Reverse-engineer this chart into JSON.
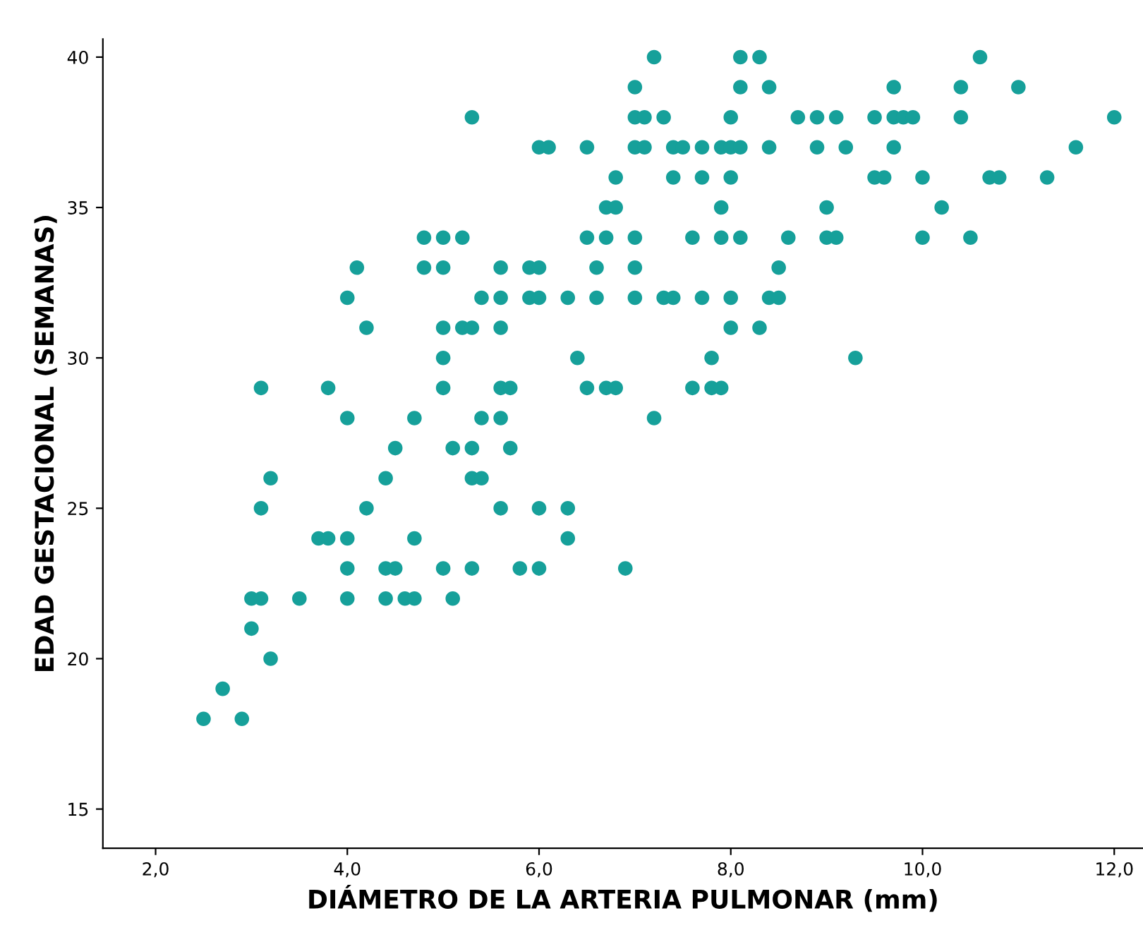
{
  "chart_data": {
    "type": "scatter",
    "xlabel": "DIÁMETRO DE LA ARTERIA PULMONAR (mm)",
    "ylabel": "EDAD GESTACIONAL (SEMANAS)",
    "xlim": [
      1.45,
      12.3
    ],
    "ylim": [
      13.7,
      40.6
    ],
    "xticks": [
      {
        "value": 2,
        "label": "2,0"
      },
      {
        "value": 4,
        "label": "4,0"
      },
      {
        "value": 6,
        "label": "6,0"
      },
      {
        "value": 8,
        "label": "8,0"
      },
      {
        "value": 10,
        "label": "10,0"
      },
      {
        "value": 12,
        "label": "12,0"
      }
    ],
    "yticks": [
      15,
      20,
      25,
      30,
      35,
      40
    ],
    "grid": false,
    "marker": "circle",
    "series": [
      {
        "color": "#16a09a",
        "x": [
          7.2,
          8.1,
          8.3,
          10.6,
          7.0,
          8.1,
          8.4,
          9.7,
          10.4,
          11.0,
          5.3,
          7.0,
          7.1,
          7.3,
          8.0,
          8.7,
          8.9,
          9.1,
          9.5,
          9.7,
          9.8,
          9.9,
          10.4,
          12.0,
          6.0,
          6.1,
          6.5,
          7.0,
          7.1,
          7.4,
          7.5,
          7.7,
          7.9,
          8.0,
          8.1,
          8.4,
          8.9,
          9.2,
          9.7,
          11.6,
          6.8,
          7.4,
          7.7,
          8.0,
          9.5,
          9.6,
          10.0,
          10.7,
          10.8,
          11.3,
          6.7,
          6.8,
          7.9,
          9.0,
          10.2,
          4.8,
          5.0,
          5.2,
          6.5,
          6.7,
          7.0,
          7.6,
          7.9,
          8.1,
          8.6,
          9.0,
          9.1,
          10.0,
          10.5,
          4.1,
          4.8,
          5.0,
          5.6,
          5.9,
          6.0,
          6.6,
          7.0,
          8.5,
          4.0,
          5.4,
          5.6,
          5.9,
          6.0,
          6.3,
          6.6,
          7.0,
          7.3,
          7.4,
          7.7,
          8.0,
          8.4,
          8.5,
          4.2,
          5.0,
          5.2,
          5.3,
          5.6,
          8.0,
          8.3,
          5.0,
          6.4,
          7.8,
          9.3,
          3.1,
          3.8,
          5.0,
          5.6,
          5.7,
          6.5,
          6.7,
          6.8,
          7.6,
          7.8,
          7.9,
          4.0,
          4.7,
          5.4,
          5.6,
          7.2,
          4.5,
          5.1,
          5.3,
          5.7,
          3.2,
          4.4,
          5.3,
          5.4,
          3.1,
          4.2,
          5.6,
          6.0,
          6.3,
          3.7,
          3.8,
          4.0,
          4.7,
          6.3,
          4.0,
          4.4,
          4.5,
          5.0,
          5.3,
          5.8,
          6.0,
          6.9,
          3.0,
          3.1,
          3.5,
          4.0,
          4.4,
          4.6,
          4.7,
          5.1,
          3.0,
          3.2,
          2.7,
          2.5,
          2.9
        ],
        "values": [
          40,
          40,
          40,
          40,
          39,
          39,
          39,
          39,
          39,
          39,
          38,
          38,
          38,
          38,
          38,
          38,
          38,
          38,
          38,
          38,
          38,
          38,
          38,
          38,
          37,
          37,
          37,
          37,
          37,
          37,
          37,
          37,
          37,
          37,
          37,
          37,
          37,
          37,
          37,
          37,
          36,
          36,
          36,
          36,
          36,
          36,
          36,
          36,
          36,
          36,
          35,
          35,
          35,
          35,
          35,
          34,
          34,
          34,
          34,
          34,
          34,
          34,
          34,
          34,
          34,
          34,
          34,
          34,
          34,
          33,
          33,
          33,
          33,
          33,
          33,
          33,
          33,
          33,
          32,
          32,
          32,
          32,
          32,
          32,
          32,
          32,
          32,
          32,
          32,
          32,
          32,
          32,
          31,
          31,
          31,
          31,
          31,
          31,
          31,
          30,
          30,
          30,
          30,
          29,
          29,
          29,
          29,
          29,
          29,
          29,
          29,
          29,
          29,
          29,
          28,
          28,
          28,
          28,
          28,
          27,
          27,
          27,
          27,
          26,
          26,
          26,
          26,
          25,
          25,
          25,
          25,
          25,
          24,
          24,
          24,
          24,
          24,
          23,
          23,
          23,
          23,
          23,
          23,
          23,
          23,
          22,
          22,
          22,
          22,
          22,
          22,
          22,
          22,
          21,
          20,
          19,
          18,
          18
        ]
      }
    ]
  }
}
